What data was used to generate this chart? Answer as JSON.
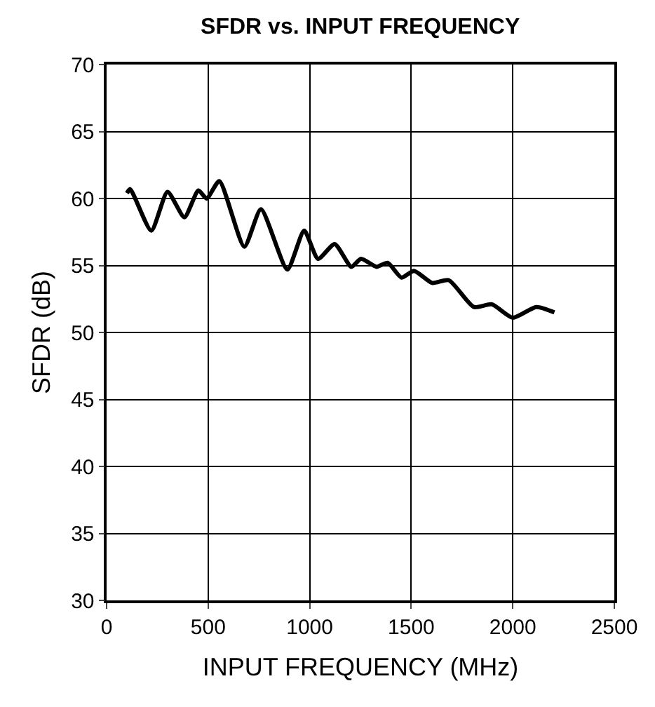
{
  "chart_data": {
    "type": "line",
    "title": "SFDR vs. INPUT FREQUENCY",
    "xlabel": "INPUT FREQUENCY (MHz)",
    "ylabel": "SFDR (dB)",
    "x": [
      100,
      116,
      220,
      300,
      383,
      452,
      493,
      555,
      678,
      760,
      890,
      973,
      1041,
      1123,
      1205,
      1253,
      1329,
      1384,
      1452,
      1514,
      1603,
      1685,
      1808,
      1897,
      2000,
      2116,
      2205
    ],
    "series": [
      {
        "color": "#000000",
        "values": [
          60.4,
          60.7,
          57.6,
          60.5,
          58.6,
          60.6,
          60,
          61.3,
          56.4,
          59.2,
          54.7,
          57.6,
          55.5,
          56.6,
          54.9,
          55.5,
          54.9,
          55.2,
          54.1,
          54.6,
          53.7,
          53.9,
          51.9,
          52.1,
          51.1,
          51.9,
          51.5
        ]
      }
    ],
    "xlim": [
      0,
      2500
    ],
    "xticks": [
      0,
      500,
      1000,
      1500,
      2000,
      2500
    ],
    "ylim": [
      30,
      70
    ],
    "yticks": [
      30,
      35,
      40,
      45,
      50,
      55,
      60,
      65,
      70
    ],
    "grid": true,
    "marker": "none",
    "line_style": "solid"
  }
}
